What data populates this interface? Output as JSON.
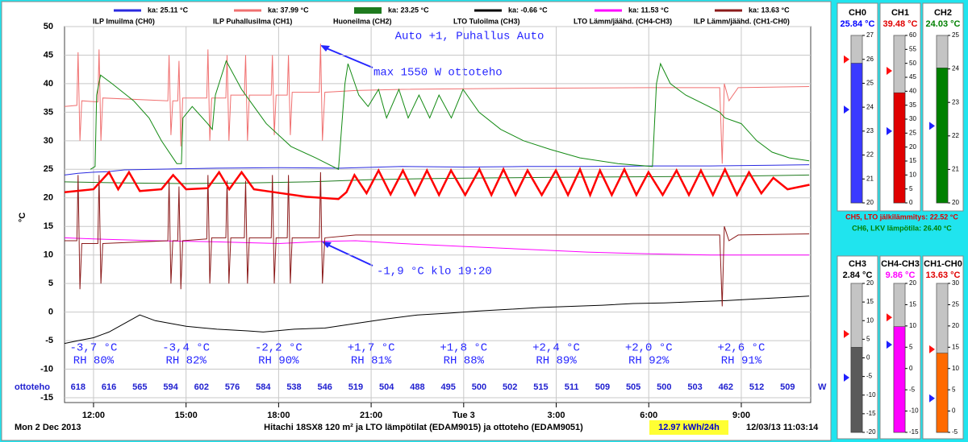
{
  "chart_data": [
    {
      "type": "line",
      "title": "Hitachi 18SX8 120 m² ja LTO lämpötilat (EDAM9015) ja ottoteho (EDAM9051)",
      "date_label": "Mon 2 Dec 2013",
      "timestamp": "12/03/13 11:03:14",
      "energy": "12.97 kWh/24h",
      "ylabel": "°C",
      "xlim": [
        11.06,
        35.25
      ],
      "xticks": [
        {
          "value": 12,
          "label": "12:00"
        },
        {
          "value": 15,
          "label": "15:00"
        },
        {
          "value": 18,
          "label": "18:00"
        },
        {
          "value": 21,
          "label": "21:00"
        },
        {
          "value": 24,
          "label": "Tue 3"
        },
        {
          "value": 27,
          "label": "3:00"
        },
        {
          "value": 30,
          "label": "6:00"
        },
        {
          "value": 33,
          "label": "9:00"
        }
      ],
      "ylim": [
        -15,
        50
      ],
      "yticks": [
        -15,
        -10,
        -5,
        0,
        5,
        10,
        15,
        20,
        25,
        30,
        35,
        40,
        45,
        50
      ],
      "grid": true,
      "annotations": [
        "Auto +1, Puhallus Auto",
        "max 1550 W ottoteho",
        "-1,9 °C klo 19:20"
      ],
      "ottoteho": {
        "label": "ottoteho",
        "unit": "W",
        "x": [
          11.5,
          12.5,
          13.5,
          14.5,
          15.5,
          16.5,
          17.5,
          18.5,
          19.5,
          20.5,
          21.5,
          22.5,
          23.5,
          24.5,
          25.5,
          26.5,
          27.5,
          28.5,
          29.5,
          30.5,
          31.5,
          32.5,
          33.5,
          34.5
        ],
        "values": [
          618,
          616,
          565,
          594,
          602,
          576,
          584,
          538,
          546,
          519,
          504,
          488,
          495,
          500,
          502,
          515,
          511,
          509,
          505,
          500,
          503,
          462,
          512,
          509
        ]
      },
      "weather": {
        "x": [
          12,
          15,
          18,
          21,
          24,
          27,
          30,
          33
        ],
        "temp": [
          "-3,7 °C",
          "-3,4 °C",
          "-2,2 °C",
          "+1,7 °C",
          "+1,8 °C",
          "+2,4 °C",
          "+2,0 °C",
          "+2,6 °C"
        ],
        "rh": [
          "RH 80%",
          "RH 82%",
          "RH 90%",
          "RH 81%",
          "RH 88%",
          "RH 89%",
          "RH 92%",
          "RH 91%"
        ]
      },
      "series": [
        {
          "name": "ILP Imuilma (CH0)",
          "legend_value": "ka: 25.11 °C",
          "color": "#2a2ae0",
          "width": 1,
          "x": [
            11.06,
            11.5,
            12,
            12.5,
            13,
            14,
            16,
            18,
            20,
            22,
            24,
            26,
            28,
            30,
            32,
            34,
            35.2
          ],
          "values": [
            24.0,
            24.3,
            24.5,
            24.6,
            24.9,
            25.0,
            25.2,
            25.3,
            25.2,
            25.5,
            25.4,
            25.5,
            25.5,
            25.6,
            25.6,
            25.7,
            25.8
          ]
        },
        {
          "name": "ILP Puhallusilma (CH1)",
          "legend_value": "ka: 37.99 °C",
          "color": "#f07070",
          "width": 1,
          "x": [
            11.06,
            11.46,
            11.5,
            11.56,
            11.62,
            12.14,
            12.18,
            12.24,
            12.3,
            14.41,
            14.45,
            14.51,
            14.57,
            14.73,
            14.77,
            14.83,
            14.89,
            15.67,
            15.71,
            15.77,
            15.83,
            16.29,
            16.33,
            16.39,
            16.45,
            16.89,
            16.93,
            16.99,
            17.05,
            17.76,
            17.8,
            17.86,
            17.92,
            18.28,
            18.32,
            18.38,
            18.44,
            19.32,
            19.36,
            19.42,
            19.5,
            20.5,
            22,
            26,
            30,
            32.3,
            32.38,
            32.45,
            32.6,
            32.9,
            35.2
          ],
          "values": [
            36,
            36.2,
            45.5,
            30,
            37,
            36.8,
            46,
            30,
            37.5,
            37,
            45,
            31,
            37,
            37,
            44,
            29,
            37.5,
            37.5,
            46,
            30,
            37.5,
            37.5,
            45,
            30,
            38,
            38,
            45,
            30,
            38,
            38,
            45,
            31,
            38,
            38,
            45,
            31,
            38.5,
            38.5,
            47,
            30,
            38.5,
            38.8,
            39,
            39.2,
            39.3,
            39.3,
            26,
            40,
            37,
            39.3,
            39.5
          ]
        },
        {
          "name": "Huoneilma (CH2)",
          "legend_value": "ka: 23.25 °C",
          "color": "#1e7a1e",
          "width": 1,
          "legend_width": 8,
          "x": [
            11.06,
            13,
            15,
            17,
            19,
            21,
            23,
            25,
            27,
            30,
            33,
            35.2
          ],
          "values": [
            22.8,
            22.6,
            22.5,
            22.6,
            22.8,
            23.2,
            23.4,
            23.5,
            23.6,
            23.7,
            23.8,
            24.0
          ]
        },
        {
          "name": "LTO Tuloilma (CH3)",
          "legend_value": "ka: -0.66 °C",
          "color": "#000000",
          "width": 1,
          "x": [
            11.06,
            11.5,
            12,
            12.5,
            13,
            13.5,
            14,
            14.5,
            15,
            16,
            17,
            17.5,
            18.5,
            19.5,
            20.5,
            21.5,
            22.5,
            23.5,
            24.5,
            25.5,
            26.5,
            27.5,
            28.5,
            29.5,
            30.5,
            31.5,
            32.5,
            33.5,
            34.5,
            35.2
          ],
          "values": [
            -5.5,
            -5.0,
            -4.5,
            -3.5,
            -2.0,
            -0.5,
            -1.5,
            -2.0,
            -2.5,
            -3.0,
            -3.3,
            -3.5,
            -3.0,
            -2.8,
            -2.0,
            -1.2,
            -0.5,
            -0.2,
            0.2,
            0.5,
            0.8,
            1.0,
            1.2,
            1.5,
            1.6,
            1.8,
            2.0,
            2.3,
            2.6,
            2.8
          ]
        },
        {
          "name": "LTO Lämm/jäähd. (CH4-CH3)",
          "legend_value": "ka: 11.53 °C",
          "color": "#ff00ff",
          "width": 1,
          "x": [
            11.06,
            12,
            14,
            16,
            18,
            19.5,
            20.5,
            22,
            24,
            26,
            28,
            30,
            32,
            35.2
          ],
          "values": [
            13.0,
            12.8,
            12.5,
            12.3,
            12.0,
            12.4,
            12.5,
            12.0,
            11.5,
            11.0,
            10.5,
            10.2,
            10.0,
            10.0
          ]
        },
        {
          "name": "ILP Lämm/jäähd. (CH1-CH0)",
          "legend_value": "ka: 13.63 °C",
          "color": "#8b1a1a",
          "width": 1,
          "x": [
            11.06,
            11.46,
            11.5,
            11.56,
            11.62,
            12.14,
            12.18,
            12.24,
            12.3,
            14.41,
            14.45,
            14.51,
            14.57,
            14.73,
            14.77,
            14.83,
            14.89,
            15.67,
            15.71,
            15.77,
            15.83,
            16.29,
            16.33,
            16.39,
            16.45,
            16.89,
            16.93,
            16.99,
            17.05,
            17.76,
            17.8,
            17.86,
            17.92,
            18.28,
            18.32,
            18.38,
            18.44,
            19.32,
            19.36,
            19.42,
            19.5,
            20.5,
            24,
            28,
            32.3,
            32.38,
            32.45,
            32.6,
            32.9,
            35.2
          ],
          "values": [
            12.5,
            12.5,
            24,
            4,
            12,
            12,
            24,
            5,
            12,
            12.5,
            23,
            5,
            12.5,
            12.5,
            22,
            4,
            12.5,
            12.8,
            24,
            5,
            13,
            13,
            23,
            5,
            13,
            13,
            23,
            5,
            13,
            13,
            24,
            5,
            13,
            13,
            24,
            5,
            13,
            13,
            24.5,
            5,
            13,
            13.5,
            13.5,
            13.5,
            13.5,
            1,
            15,
            12.5,
            13.5,
            13.7
          ]
        },
        {
          "color": "#ff0000",
          "width": 2.5,
          "x": [
            11.06,
            12,
            12.5,
            12.8,
            13.15,
            13.5,
            14.2,
            14.58,
            15,
            15.7,
            16.07,
            16.4,
            16.8,
            17.2,
            17.85,
            18.89,
            19.94,
            20.2,
            20.46,
            20.85,
            21.24,
            21.63,
            22.03,
            22.42,
            22.81,
            23.2,
            23.59,
            24.05,
            24.51,
            24.9,
            25.29,
            25.68,
            26.07,
            26.53,
            26.99,
            27.38,
            27.77,
            28.1,
            28.42,
            28.8,
            29.21,
            29.6,
            29.99,
            30.45,
            30.9,
            31.3,
            31.69,
            32.08,
            32.47,
            32.86,
            33.25,
            33.65,
            34.04,
            34.5,
            35.21
          ],
          "values": [
            21,
            21.5,
            24.5,
            21.5,
            24.5,
            21.2,
            21.5,
            24,
            21.5,
            21.7,
            24.5,
            21.5,
            24.5,
            21.5,
            21,
            20.2,
            19.8,
            21,
            24,
            20.8,
            24.8,
            20.6,
            24.8,
            20.5,
            24.8,
            20.5,
            24.8,
            20.5,
            25,
            20.5,
            25,
            20.5,
            24.8,
            20.5,
            24.8,
            20.5,
            25,
            20.5,
            24.8,
            20.5,
            25,
            20.5,
            24.5,
            20.5,
            24.8,
            20.5,
            24.8,
            20.5,
            25,
            20.5,
            24.5,
            20.8,
            23.5,
            21.5,
            22.3
          ]
        },
        {
          "color": "#138a13",
          "width": 1,
          "x": [
            11.9,
            12.05,
            12.1,
            12.23,
            12.6,
            13.3,
            13.8,
            14.2,
            14.7,
            14.85,
            14.9,
            15.2,
            15.7,
            15.85,
            15.95,
            16.3,
            16.8,
            17.2,
            17.6,
            18.4,
            19.2,
            19.94,
            20.15,
            20.25,
            20.6,
            20.9,
            21.24,
            21.5,
            21.9,
            22.2,
            22.55,
            22.9,
            23.2,
            23.6,
            23.98,
            24.5,
            25.2,
            25.94,
            26.8,
            27.77,
            29,
            30.12,
            30.25,
            30.38,
            30.7,
            31.2,
            31.95,
            32.3,
            32.47,
            33.0,
            33.5,
            34.0,
            34.56,
            35.2
          ],
          "values": [
            25,
            25.5,
            38,
            41.5,
            40,
            37,
            34,
            30,
            26,
            26,
            34,
            36,
            33,
            32,
            38,
            44,
            39,
            36,
            33,
            29,
            27,
            25,
            40,
            43.5,
            38,
            36,
            39,
            34,
            39,
            34,
            38,
            34,
            38,
            34,
            39,
            35,
            32,
            30,
            28.5,
            27,
            26,
            25.5,
            40,
            43.5,
            40,
            38,
            36,
            35,
            34,
            33,
            30,
            28,
            27,
            26.5
          ]
        }
      ]
    },
    {
      "type": "gauge",
      "title": "CH0",
      "value": 25.84,
      "value_label": "25.84 °C",
      "color": "#3a3aff",
      "text_color": "#0000ff",
      "ylim": [
        20,
        27
      ],
      "yticks": [
        20,
        21,
        22,
        23,
        24,
        25,
        26,
        27
      ],
      "high": 26.0,
      "low": 23.9
    },
    {
      "type": "gauge",
      "title": "CH1",
      "value": 39.48,
      "value_label": "39.48 °C",
      "color": "#e00000",
      "text_color": "#e00000",
      "ylim": [
        0,
        60
      ],
      "yticks": [
        0,
        5,
        10,
        15,
        20,
        25,
        30,
        35,
        40,
        45,
        50,
        55,
        60
      ],
      "high": 47.3,
      "low": 25.7
    },
    {
      "type": "gauge",
      "title": "CH2",
      "value": 24.03,
      "value_label": "24.03 °C",
      "color": "#008000",
      "text_color": "#008000",
      "ylim": [
        20,
        25
      ],
      "yticks": [
        20,
        21,
        22,
        23,
        24,
        25
      ],
      "low": 22.3
    },
    {
      "type": "gauge",
      "title": "CH3",
      "value": 2.84,
      "value_label": "2.84 °C",
      "color": "#5a5a5a",
      "text_color": "#000000",
      "ylim": [
        -20,
        20
      ],
      "yticks": [
        -20,
        -15,
        -10,
        -5,
        0,
        5,
        10,
        15,
        20
      ],
      "high": 6.4,
      "low": -5.3
    },
    {
      "type": "gauge",
      "title": "CH4-CH3",
      "value": 9.86,
      "value_label": "9.86 °C",
      "color": "#ff00ff",
      "text_color": "#ff00ff",
      "ylim": [
        -15,
        20
      ],
      "yticks": [
        -15,
        -10,
        -5,
        0,
        5,
        10,
        15,
        20
      ],
      "high": 12,
      "low": 5.6
    },
    {
      "type": "gauge",
      "title": "CH1-CH0",
      "value": 13.63,
      "value_label": "13.63 °C",
      "color": "#ff6a00",
      "text_color": "#e00000",
      "ylim": [
        -5,
        30
      ],
      "yticks": [
        -5,
        0,
        5,
        10,
        15,
        20,
        25,
        30
      ],
      "high": 14.5,
      "low": 3
    }
  ],
  "side_notes": [
    "CH5, LTO jälkilämmitys: 22.52 °C",
    "CH6, LKV lämpötila: 26.40 °C"
  ]
}
